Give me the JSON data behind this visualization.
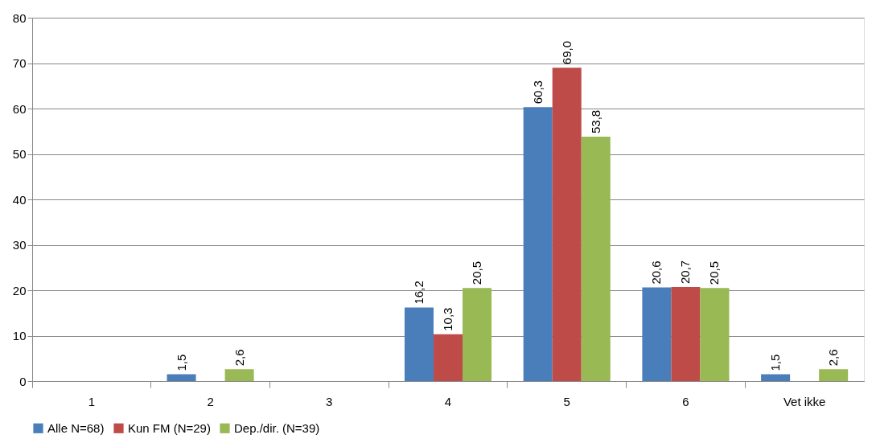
{
  "chart_data": {
    "type": "bar",
    "categories": [
      "1",
      "2",
      "3",
      "4",
      "5",
      "6",
      "Vet ikke"
    ],
    "series": [
      {
        "name": "Alle N=68)",
        "color": "#4a7ebb",
        "values": [
          null,
          1.5,
          null,
          16.2,
          60.3,
          20.6,
          1.5
        ],
        "value_labels": [
          null,
          "1,5",
          null,
          "16,2",
          "60,3",
          "20,6",
          "1,5"
        ]
      },
      {
        "name": "Kun FM (N=29)",
        "color": "#be4b48",
        "values": [
          null,
          null,
          null,
          10.3,
          69.0,
          20.7,
          null
        ],
        "value_labels": [
          null,
          null,
          null,
          "10,3",
          "69,0",
          "20,7",
          null
        ]
      },
      {
        "name": "Dep./dir. (N=39)",
        "color": "#98b954",
        "values": [
          null,
          2.6,
          null,
          20.5,
          53.8,
          20.5,
          2.6
        ],
        "value_labels": [
          null,
          "2,6",
          null,
          "20,5",
          "53,8",
          "20,5",
          "2,6"
        ]
      }
    ],
    "ylim": [
      0,
      80
    ],
    "yticks": [
      0,
      10,
      20,
      30,
      40,
      50,
      60,
      70,
      80
    ],
    "grid": "y",
    "legend": "bottom"
  }
}
